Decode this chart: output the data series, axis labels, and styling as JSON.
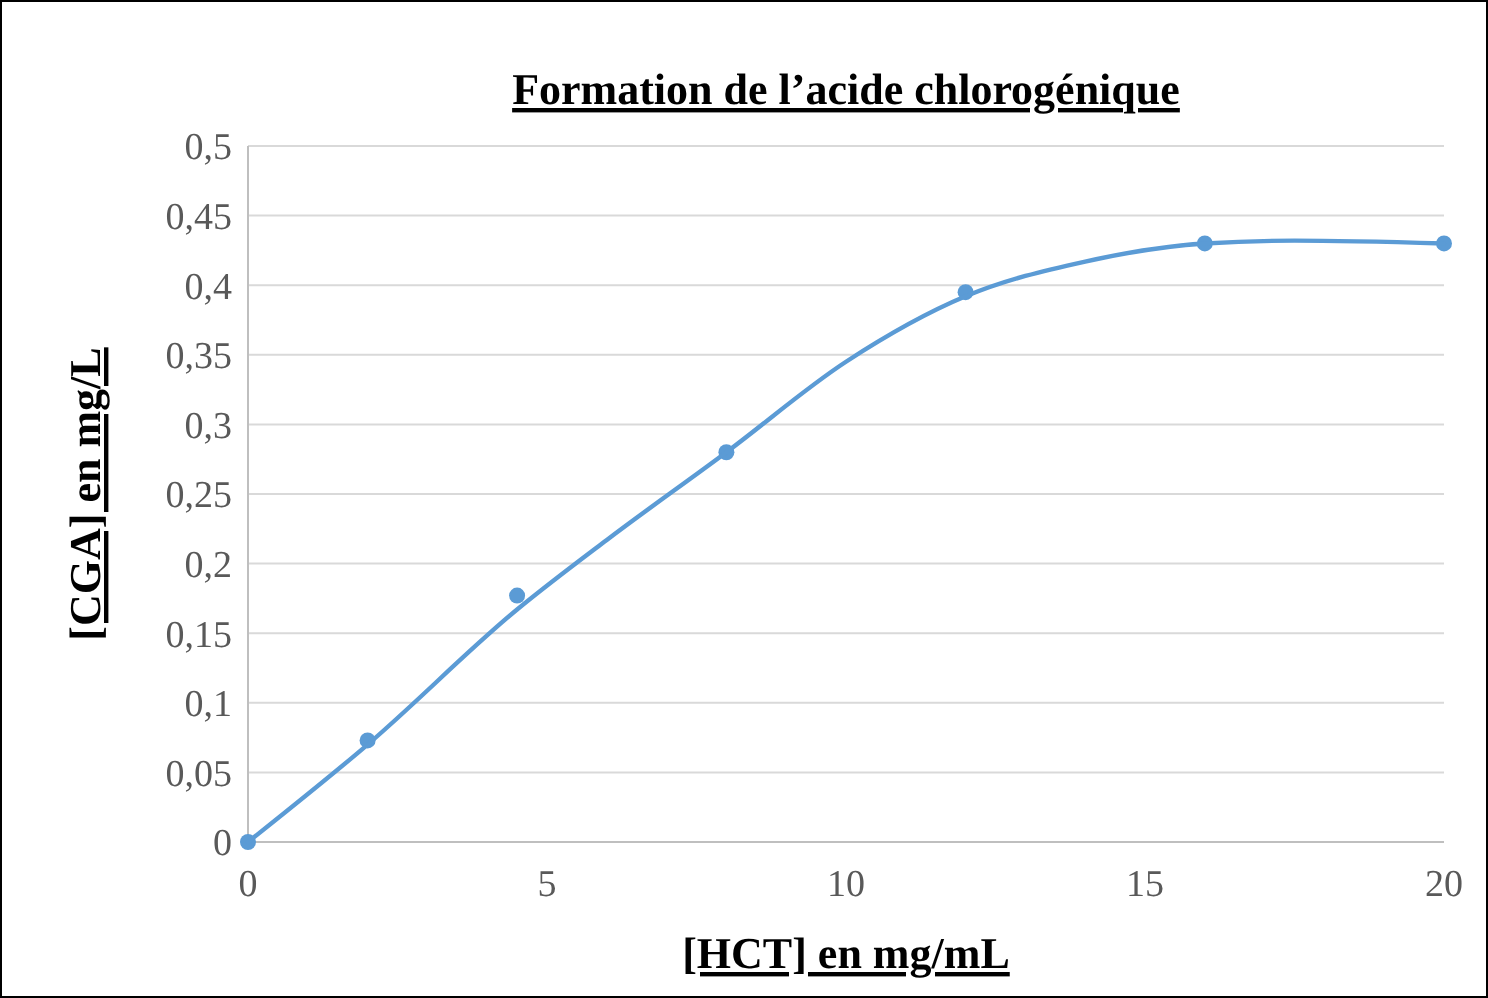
{
  "chart_data": {
    "type": "scatter",
    "title": "Formation de l’acide chlorogénique",
    "xlabel": "[HCT] en mg/mL",
    "ylabel": "[CGA] en mg/L",
    "xlim": [
      0,
      20
    ],
    "xticks": [
      0,
      5,
      10,
      15,
      20
    ],
    "ylim": [
      0,
      0.5
    ],
    "yticks": [
      {
        "value": 0,
        "label": "0"
      },
      {
        "value": 0.05,
        "label": "0,05"
      },
      {
        "value": 0.1,
        "label": "0,1"
      },
      {
        "value": 0.15,
        "label": "0,15"
      },
      {
        "value": 0.2,
        "label": "0,2"
      },
      {
        "value": 0.25,
        "label": "0,25"
      },
      {
        "value": 0.3,
        "label": "0,3"
      },
      {
        "value": 0.35,
        "label": "0,35"
      },
      {
        "value": 0.4,
        "label": "0,4"
      },
      {
        "value": 0.45,
        "label": "0,45"
      },
      {
        "value": 0.5,
        "label": "0,5"
      }
    ],
    "grid": "y",
    "series": [
      {
        "color": "#5b9bd5",
        "marker": "circle",
        "x": [
          0,
          2,
          4.5,
          8,
          12,
          16,
          20
        ],
        "values": [
          0,
          0.073,
          0.177,
          0.28,
          0.395,
          0.43,
          0.43
        ]
      },
      {
        "type": "line",
        "color": "#5b9bd5",
        "marker": "none",
        "line_style": "solid",
        "x": [
          0,
          2,
          4.5,
          6,
          8,
          10,
          12,
          14,
          16,
          17.5,
          20
        ],
        "values": [
          0,
          0.07,
          0.167,
          0.217,
          0.28,
          0.345,
          0.392,
          0.417,
          0.43,
          0.432,
          0.43
        ]
      }
    ]
  }
}
